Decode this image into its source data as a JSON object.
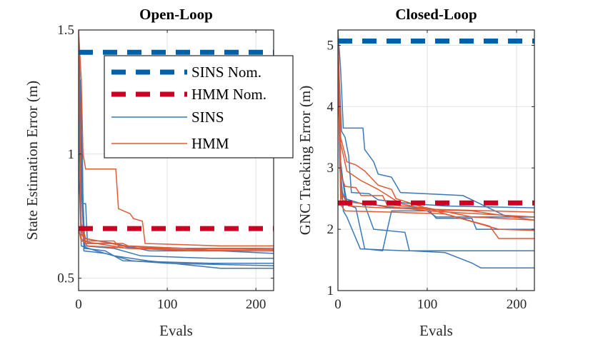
{
  "colors": {
    "sins": "#0060a8",
    "hmm": "#cc0022",
    "sins_thin": "#3a78b8",
    "hmm_thin": "#e05a36",
    "grid": "#e2e2e2",
    "axis": "#262626"
  },
  "chart_data": [
    {
      "type": "line",
      "title": "Open-Loop",
      "xlabel": "Evals",
      "ylabel": "State Estimation Error (m)",
      "xlim": [
        0,
        220
      ],
      "ylim": [
        0.45,
        1.5
      ],
      "xticks": [
        0,
        100,
        200
      ],
      "yticks": [
        0.5,
        1,
        1.5
      ],
      "xtick_labels": [
        "0",
        "100",
        "200"
      ],
      "ytick_labels": [
        "0.5",
        "1",
        "1.5"
      ],
      "legend": {
        "position": "top-right",
        "entries": [
          "SINS Nom.",
          "HMM Nom.",
          "SINS",
          "HMM"
        ]
      },
      "nominal": [
        {
          "name": "SINS Nom.",
          "y": 1.41
        },
        {
          "name": "HMM Nom.",
          "y": 0.7
        }
      ],
      "series": [
        {
          "name": "SINS",
          "points": [
            [
              0,
              0.84
            ],
            [
              2,
              1.3
            ],
            [
              4,
              1.08
            ],
            [
              5,
              0.8
            ],
            [
              8,
              0.8
            ],
            [
              10,
              0.64
            ],
            [
              40,
              0.64
            ],
            [
              60,
              0.62
            ],
            [
              120,
              0.62
            ],
            [
              160,
              0.61
            ],
            [
              220,
              0.61
            ]
          ]
        },
        {
          "name": "SINS",
          "points": [
            [
              0,
              1.5
            ],
            [
              3,
              1.06
            ],
            [
              6,
              0.66
            ],
            [
              40,
              0.64
            ],
            [
              80,
              0.61
            ],
            [
              160,
              0.61
            ],
            [
              220,
              0.6
            ]
          ]
        },
        {
          "name": "SINS",
          "points": [
            [
              0,
              1.5
            ],
            [
              4,
              0.9
            ],
            [
              7,
              0.63
            ],
            [
              40,
              0.62
            ],
            [
              70,
              0.59
            ],
            [
              150,
              0.58
            ],
            [
              220,
              0.58
            ]
          ]
        },
        {
          "name": "SINS",
          "points": [
            [
              0,
              1.2
            ],
            [
              4,
              0.8
            ],
            [
              7,
              0.62
            ],
            [
              30,
              0.61
            ],
            [
              50,
              0.57
            ],
            [
              150,
              0.56
            ],
            [
              220,
              0.56
            ]
          ]
        },
        {
          "name": "SINS",
          "points": [
            [
              0,
              1.5
            ],
            [
              3,
              0.95
            ],
            [
              6,
              0.61
            ],
            [
              30,
              0.6
            ],
            [
              60,
              0.57
            ],
            [
              100,
              0.56
            ],
            [
              220,
              0.55
            ]
          ]
        },
        {
          "name": "SINS",
          "points": [
            [
              0,
              1.0
            ],
            [
              3,
              0.63
            ],
            [
              20,
              0.61
            ],
            [
              40,
              0.59
            ],
            [
              78,
              0.57
            ],
            [
              160,
              0.54
            ],
            [
              220,
              0.54
            ]
          ]
        },
        {
          "name": "HMM",
          "points": [
            [
              0,
              1.5
            ],
            [
              3,
              1.3
            ],
            [
              5,
              1.0
            ],
            [
              8,
              0.94
            ],
            [
              20,
              0.94
            ],
            [
              42,
              0.94
            ],
            [
              45,
              0.78
            ],
            [
              58,
              0.76
            ],
            [
              62,
              0.74
            ],
            [
              72,
              0.73
            ],
            [
              75,
              0.64
            ],
            [
              160,
              0.63
            ],
            [
              220,
              0.63
            ]
          ]
        },
        {
          "name": "HMM",
          "points": [
            [
              0,
              1.5
            ],
            [
              3,
              0.7
            ],
            [
              8,
              0.64
            ],
            [
              50,
              0.64
            ],
            [
              56,
              0.63
            ],
            [
              120,
              0.62
            ],
            [
              220,
              0.62
            ]
          ]
        },
        {
          "name": "HMM",
          "points": [
            [
              0,
              1.5
            ],
            [
              3,
              0.68
            ],
            [
              8,
              0.65
            ],
            [
              40,
              0.65
            ],
            [
              45,
              0.63
            ],
            [
              120,
              0.62
            ],
            [
              220,
              0.615
            ]
          ]
        },
        {
          "name": "HMM",
          "points": [
            [
              0,
              1.5
            ],
            [
              3,
              0.66
            ],
            [
              10,
              0.63
            ],
            [
              60,
              0.62
            ],
            [
              130,
              0.61
            ],
            [
              220,
              0.61
            ]
          ]
        },
        {
          "name": "HMM",
          "points": [
            [
              0,
              0.7
            ],
            [
              3,
              0.65
            ],
            [
              20,
              0.64
            ],
            [
              55,
              0.62
            ],
            [
              110,
              0.615
            ],
            [
              220,
              0.61
            ]
          ]
        },
        {
          "name": "HMM",
          "points": [
            [
              0,
              1.5
            ],
            [
              3,
              0.72
            ],
            [
              8,
              0.66
            ],
            [
              50,
              0.63
            ],
            [
              90,
              0.62
            ],
            [
              220,
              0.62
            ]
          ]
        }
      ]
    },
    {
      "type": "line",
      "title": "Closed-Loop",
      "xlabel": "Evals",
      "ylabel": "GNC Tracking Error (m)",
      "xlim": [
        0,
        220
      ],
      "ylim": [
        1,
        5.25
      ],
      "xticks": [
        0,
        100,
        200
      ],
      "yticks": [
        1,
        2,
        3,
        4,
        5
      ],
      "xtick_labels": [
        "0",
        "100",
        "200"
      ],
      "ytick_labels": [
        "1",
        "2",
        "3",
        "4",
        "5"
      ],
      "nominal": [
        {
          "name": "SINS Nom.",
          "y": 5.07
        },
        {
          "name": "HMM Nom.",
          "y": 2.43
        }
      ],
      "series": [
        {
          "name": "SINS",
          "points": [
            [
              0,
              5.25
            ],
            [
              3,
              4.6
            ],
            [
              6,
              3.65
            ],
            [
              28,
              3.65
            ],
            [
              30,
              3.3
            ],
            [
              40,
              3.1
            ],
            [
              45,
              2.9
            ],
            [
              60,
              2.85
            ],
            [
              70,
              2.6
            ],
            [
              140,
              2.55
            ],
            [
              190,
              2.2
            ],
            [
              220,
              2.2
            ]
          ]
        },
        {
          "name": "SINS",
          "points": [
            [
              0,
              5.25
            ],
            [
              2,
              3.0
            ],
            [
              5,
              2.6
            ],
            [
              10,
              2.4
            ],
            [
              20,
              2.35
            ],
            [
              30,
              1.68
            ],
            [
              50,
              1.65
            ],
            [
              55,
              1.98
            ],
            [
              60,
              2.3
            ],
            [
              100,
              2.3
            ],
            [
              110,
              2.2
            ],
            [
              150,
              2.2
            ],
            [
              220,
              2.2
            ]
          ]
        },
        {
          "name": "SINS",
          "points": [
            [
              0,
              5.25
            ],
            [
              3,
              3.1
            ],
            [
              8,
              2.5
            ],
            [
              30,
              2.4
            ],
            [
              40,
              2.0
            ],
            [
              75,
              1.95
            ],
            [
              80,
              1.65
            ],
            [
              120,
              1.62
            ],
            [
              150,
              1.45
            ],
            [
              160,
              1.37
            ],
            [
              220,
              1.37
            ]
          ]
        },
        {
          "name": "SINS",
          "points": [
            [
              0,
              4.5
            ],
            [
              3,
              3.0
            ],
            [
              10,
              2.45
            ],
            [
              40,
              2.4
            ],
            [
              60,
              2.35
            ],
            [
              100,
              2.35
            ],
            [
              110,
              2.18
            ],
            [
              150,
              2.18
            ],
            [
              155,
              2.0
            ],
            [
              220,
              2.0
            ]
          ]
        },
        {
          "name": "SINS",
          "points": [
            [
              0,
              5.0
            ],
            [
              4,
              3.6
            ],
            [
              8,
              3.5
            ],
            [
              12,
              3.2
            ],
            [
              15,
              2.6
            ],
            [
              35,
              2.58
            ],
            [
              45,
              2.48
            ],
            [
              80,
              2.42
            ],
            [
              120,
              2.38
            ],
            [
              220,
              2.35
            ]
          ]
        },
        {
          "name": "SINS",
          "points": [
            [
              0,
              4.8
            ],
            [
              3,
              3.0
            ],
            [
              6,
              2.3
            ],
            [
              10,
              2.2
            ],
            [
              25,
              1.68
            ],
            [
              75,
              1.65
            ],
            [
              80,
              1.65
            ],
            [
              220,
              1.65
            ]
          ]
        },
        {
          "name": "HMM",
          "points": [
            [
              0,
              5.25
            ],
            [
              3,
              2.9
            ],
            [
              8,
              2.7
            ],
            [
              20,
              2.68
            ],
            [
              26,
              2.55
            ],
            [
              50,
              2.55
            ],
            [
              55,
              2.4
            ],
            [
              100,
              2.35
            ],
            [
              150,
              2.2
            ],
            [
              220,
              2.15
            ]
          ]
        },
        {
          "name": "HMM",
          "points": [
            [
              0,
              5.25
            ],
            [
              3,
              3.5
            ],
            [
              10,
              3.1
            ],
            [
              20,
              3.05
            ],
            [
              30,
              2.95
            ],
            [
              45,
              2.72
            ],
            [
              60,
              2.65
            ],
            [
              65,
              2.5
            ],
            [
              120,
              2.25
            ],
            [
              180,
              2.0
            ],
            [
              220,
              1.98
            ]
          ]
        },
        {
          "name": "HMM",
          "points": [
            [
              0,
              5.25
            ],
            [
              3,
              2.6
            ],
            [
              10,
              2.45
            ],
            [
              40,
              2.4
            ],
            [
              100,
              2.3
            ],
            [
              160,
              2.25
            ],
            [
              220,
              2.2
            ]
          ]
        },
        {
          "name": "HMM",
          "points": [
            [
              0,
              4.5
            ],
            [
              4,
              2.5
            ],
            [
              12,
              2.38
            ],
            [
              50,
              2.35
            ],
            [
              120,
              2.32
            ],
            [
              220,
              2.28
            ]
          ]
        },
        {
          "name": "HMM",
          "points": [
            [
              0,
              5.25
            ],
            [
              3,
              2.4
            ],
            [
              8,
              2.3
            ],
            [
              60,
              2.28
            ],
            [
              120,
              2.25
            ],
            [
              170,
              2.05
            ],
            [
              180,
              1.85
            ],
            [
              220,
              1.85
            ]
          ]
        },
        {
          "name": "HMM",
          "points": [
            [
              0,
              5.0
            ],
            [
              3,
              3.4
            ],
            [
              10,
              2.95
            ],
            [
              25,
              2.8
            ],
            [
              45,
              2.65
            ],
            [
              70,
              2.42
            ],
            [
              100,
              2.32
            ],
            [
              150,
              2.3
            ],
            [
              220,
              2.15
            ]
          ]
        }
      ]
    }
  ]
}
